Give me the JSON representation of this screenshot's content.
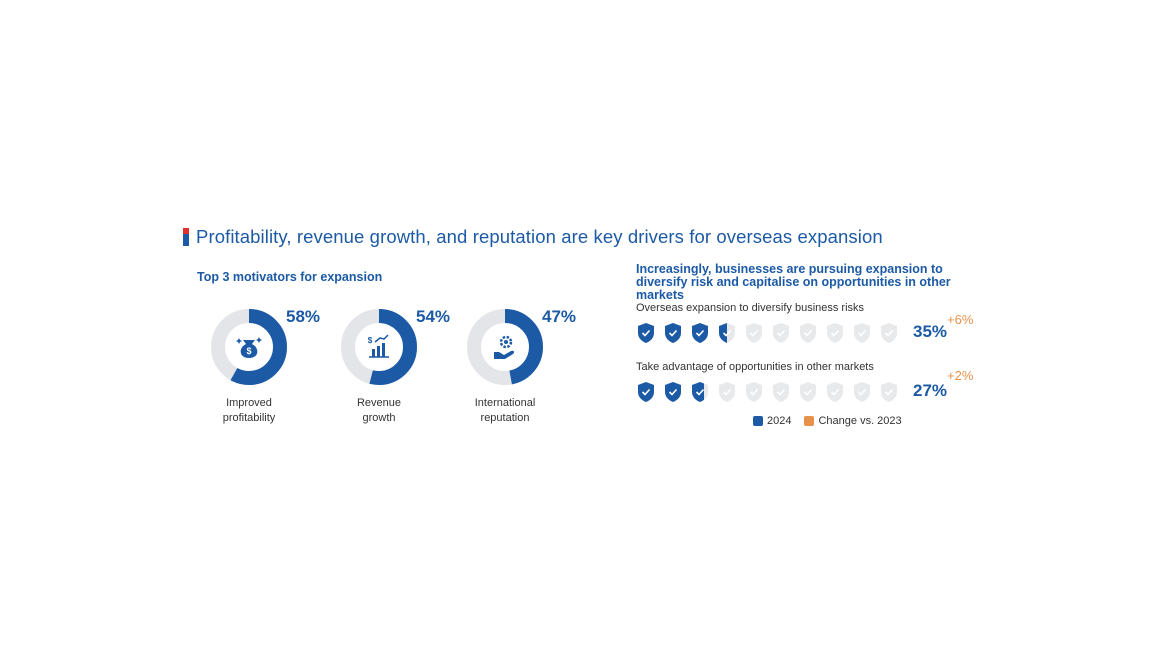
{
  "title": "Profitability, revenue growth, and reputation are key drivers for overseas expansion",
  "left": {
    "subtitle": "Top 3 motivators for expansion"
  },
  "right": {
    "subtitle": "Increasingly, businesses are pursuing expansion to diversify risk and capitalise on opportunities in other markets"
  },
  "colors": {
    "primary": "#1c5aa6",
    "ring_bg": "#e3e5e8",
    "change": "#e8914a",
    "shield_empty": "#e8e9eb"
  },
  "chart_data": [
    {
      "type": "donut",
      "title": "Top 3 motivators for expansion",
      "items": [
        {
          "label_line1": "Improved",
          "label_line2": "profitability",
          "value": 58,
          "display": "58%",
          "icon": "money-bag-icon"
        },
        {
          "label_line1": "Revenue",
          "label_line2": "growth",
          "value": 54,
          "display": "54%",
          "icon": "bar-chart-growth-icon"
        },
        {
          "label_line1": "International",
          "label_line2": "reputation",
          "value": 47,
          "display": "47%",
          "icon": "hand-gear-icon"
        }
      ]
    },
    {
      "type": "pictogram",
      "title": "Increasingly, businesses are pursuing expansion to diversify risk and capitalise on opportunities in other markets",
      "total_icons": 10,
      "rows": [
        {
          "label": "Overseas expansion to diversify business risks",
          "value": 35,
          "display": "35%",
          "change": "+6%"
        },
        {
          "label": "Take advantage of opportunities in other markets",
          "value": 27,
          "display": "27%",
          "change": "+2%"
        }
      ],
      "legend": [
        {
          "label": "2024",
          "color": "#1c5aa6"
        },
        {
          "label": "Change vs. 2023",
          "color": "#e8914a"
        }
      ]
    }
  ]
}
